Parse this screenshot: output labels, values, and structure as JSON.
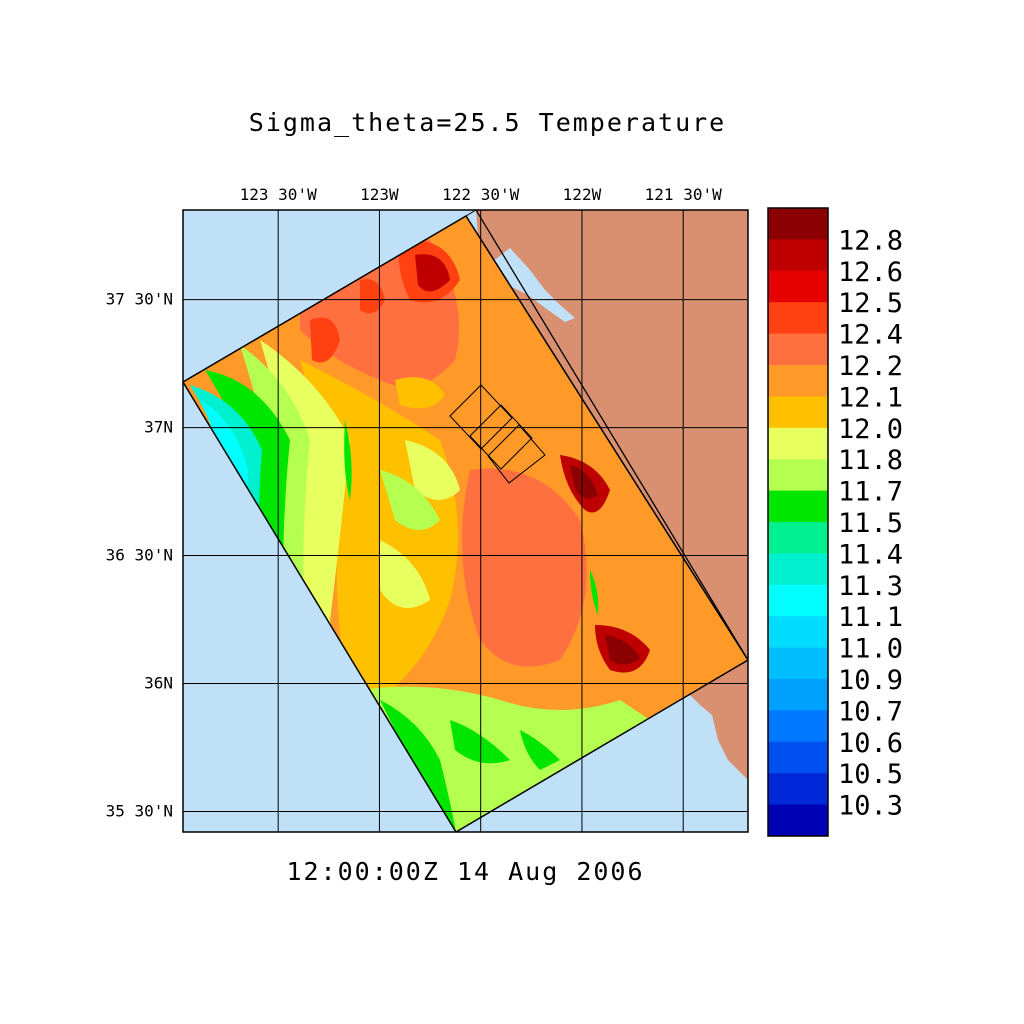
{
  "chart_data": {
    "type": "heatmap",
    "title": "Sigma_theta=25.5 Temperature",
    "timestamp": "12:00:00Z  14 Aug 2006",
    "x_ticks": [
      "123 30'W",
      "123W",
      "122 30'W",
      "122W",
      "121 30'W"
    ],
    "x_values": [
      -123.5,
      -123.0,
      -122.5,
      -122.0,
      -121.5
    ],
    "y_ticks": [
      "37 30'N",
      "37N",
      "36 30'N",
      "36N",
      "35 30'N"
    ],
    "y_values": [
      37.5,
      37.0,
      36.5,
      36.0,
      35.5
    ],
    "xlim": [
      -123.97,
      -121.18
    ],
    "ylim": [
      35.42,
      37.85
    ],
    "grid": true,
    "colorbar": {
      "labels": [
        "12.8",
        "12.6",
        "12.5",
        "12.4",
        "12.2",
        "12.1",
        "12.0",
        "11.8",
        "11.7",
        "11.5",
        "11.4",
        "11.3",
        "11.1",
        "11.0",
        "10.9",
        "10.7",
        "10.6",
        "10.5",
        "10.3"
      ],
      "colors": [
        "#8b0000",
        "#be0000",
        "#e60000",
        "#ff4010",
        "#ff7040",
        "#ff9a28",
        "#ffc000",
        "#e8ff60",
        "#b4ff50",
        "#00e600",
        "#00f090",
        "#00f0d0",
        "#00ffff",
        "#00dcff",
        "#00beff",
        "#00a0ff",
        "#0078ff",
        "#0050f0",
        "#0028d8",
        "#0000b4"
      ]
    },
    "colors": {
      "ocean": "#c0e0f8",
      "land": "#d89070",
      "domain_dominant": "#ff9a28"
    },
    "approx_field": {
      "coastal_upwelling_warm_max": 12.8,
      "offshore_cold_min": 11.1
    }
  }
}
